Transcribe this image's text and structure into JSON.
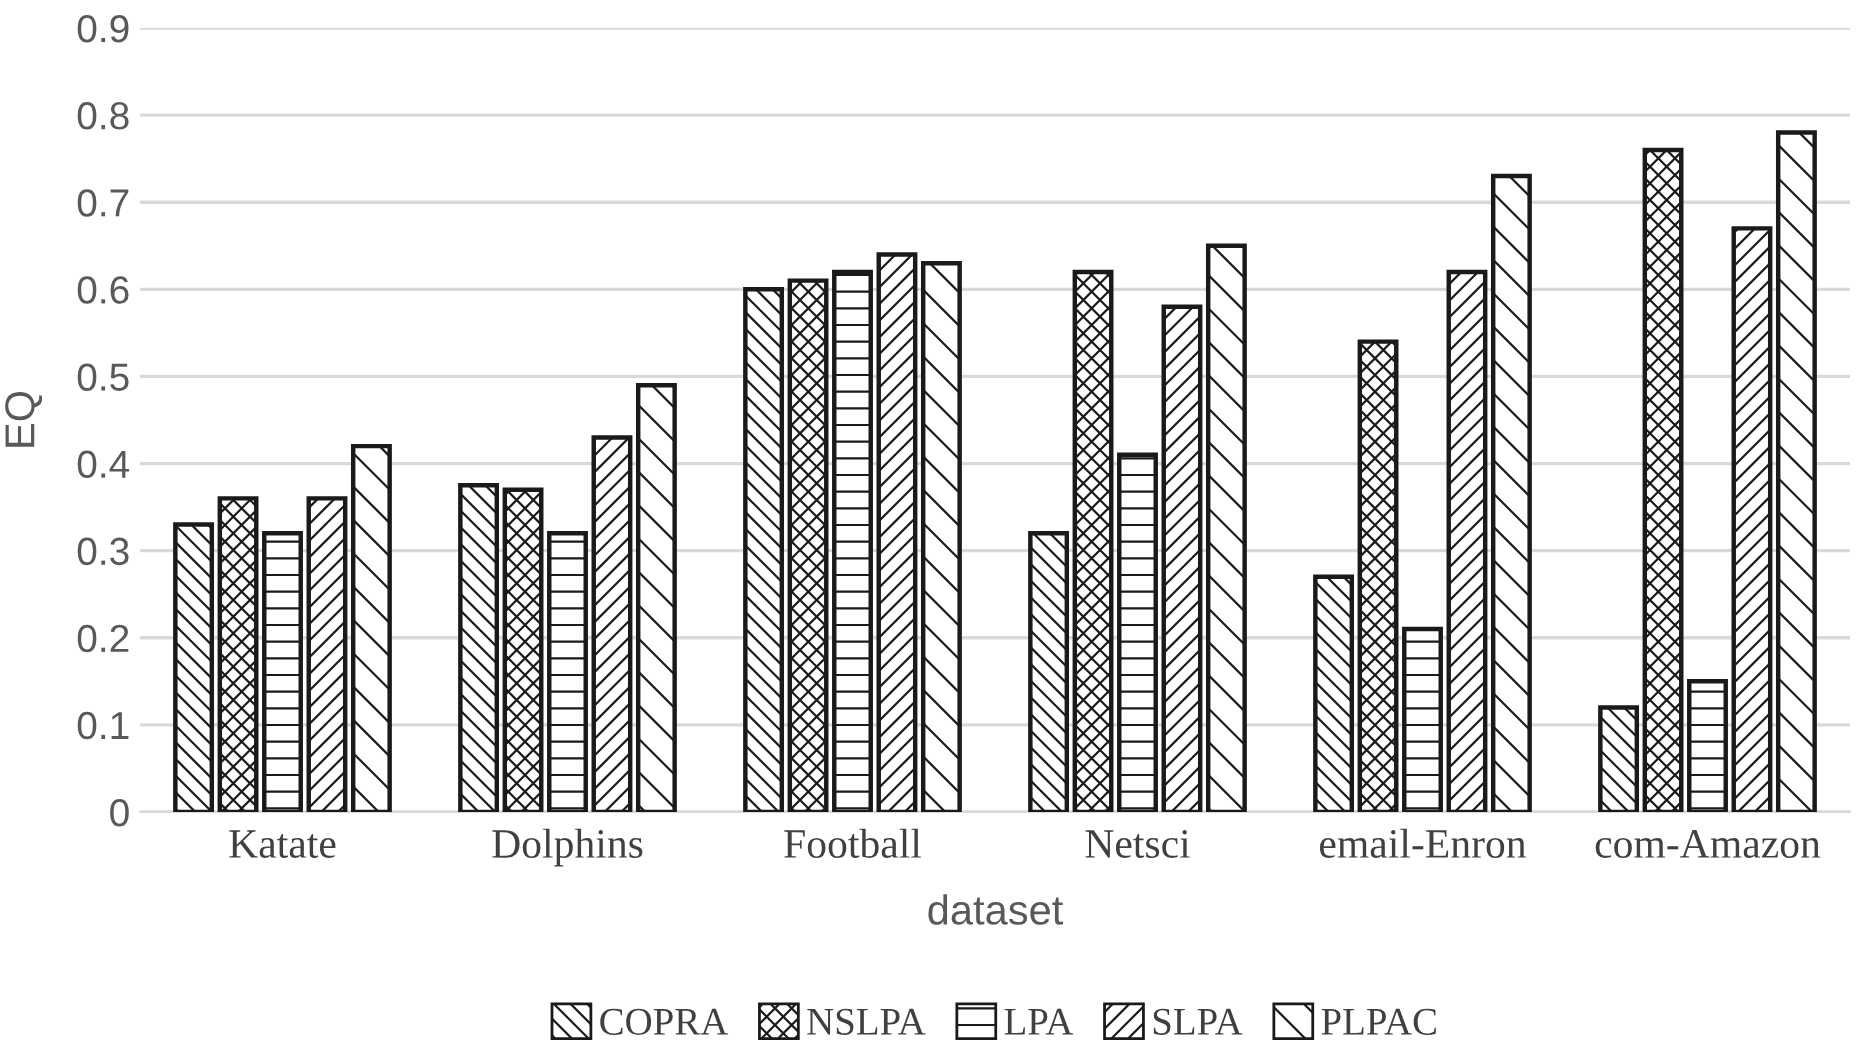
{
  "chart_data": {
    "type": "bar",
    "xlabel": "dataset",
    "ylabel": "EQ",
    "categories": [
      "Katate",
      "Dolphins",
      "Football",
      "Netsci",
      "email-Enron",
      "com-Amazon"
    ],
    "series": [
      {
        "name": "COPRA",
        "color": "#1a1a1a",
        "values": [
          0.33,
          0.375,
          0.6,
          0.32,
          0.27,
          0.12
        ]
      },
      {
        "name": "NSLPA",
        "color": "#1a1a1a",
        "values": [
          0.36,
          0.37,
          0.61,
          0.62,
          0.54,
          0.76
        ]
      },
      {
        "name": "LPA",
        "color": "#1a1a1a",
        "values": [
          0.32,
          0.32,
          0.62,
          0.41,
          0.21,
          0.15
        ]
      },
      {
        "name": "SLPA",
        "color": "#1a1a1a",
        "values": [
          0.36,
          0.43,
          0.64,
          0.58,
          0.62,
          0.67
        ]
      },
      {
        "name": "PLPAC",
        "color": "#1a1a1a",
        "values": [
          0.42,
          0.49,
          0.63,
          0.65,
          0.73,
          0.78
        ]
      }
    ],
    "ylim": [
      0,
      0.9
    ],
    "yticks": [
      {
        "value": 0,
        "label": "0"
      },
      0.1,
      0.2,
      0.3,
      0.4,
      0.5,
      0.6,
      0.7,
      0.8,
      0.9
    ],
    "grid": "y",
    "legend": "bottom"
  }
}
